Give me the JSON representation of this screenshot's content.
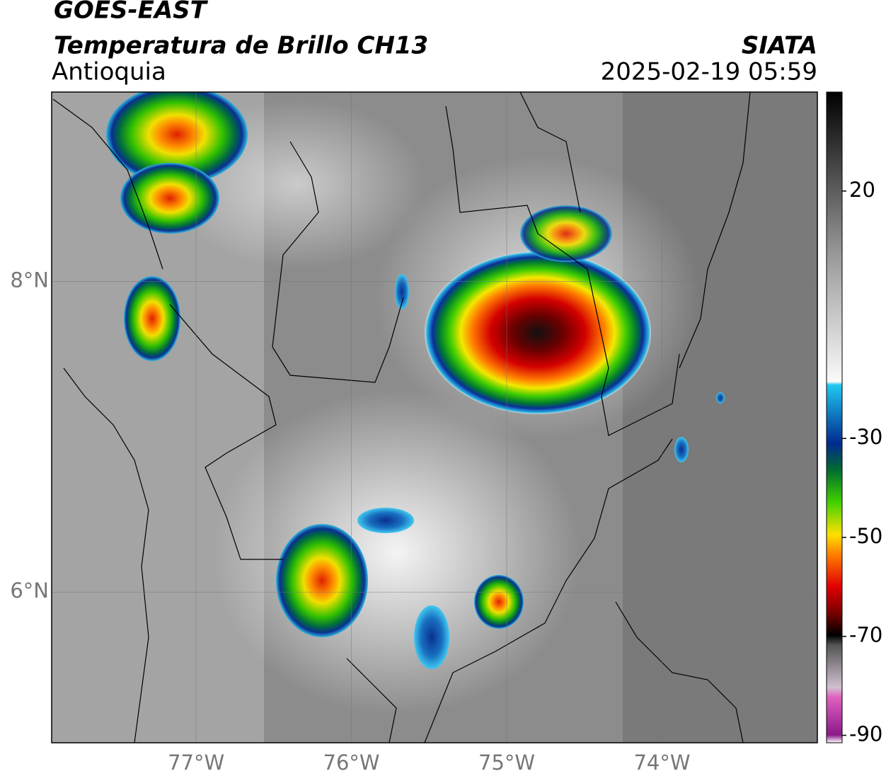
{
  "header": {
    "satellite": "GOES-EAST",
    "product": "Temperatura de Brillo CH13",
    "region": "Antioquia",
    "source": "SIATA",
    "datetime": "2025-02-19 05:59"
  },
  "map": {
    "lon_lim": [
      -77.93,
      -73.0
    ],
    "lat_lim": [
      5.03,
      9.22
    ],
    "lon_ticks": [
      {
        "value": -77,
        "label": "77°W"
      },
      {
        "value": -76,
        "label": "76°W"
      },
      {
        "value": -75,
        "label": "75°W"
      },
      {
        "value": -74,
        "label": "74°W"
      }
    ],
    "lat_ticks": [
      {
        "value": 8,
        "label": "8°N"
      },
      {
        "value": 6,
        "label": "6°N"
      }
    ],
    "grid": true
  },
  "colorbar": {
    "lim": [
      -91.5,
      40
    ],
    "ticks": [
      20,
      -30,
      -50,
      -70,
      -90
    ]
  }
}
